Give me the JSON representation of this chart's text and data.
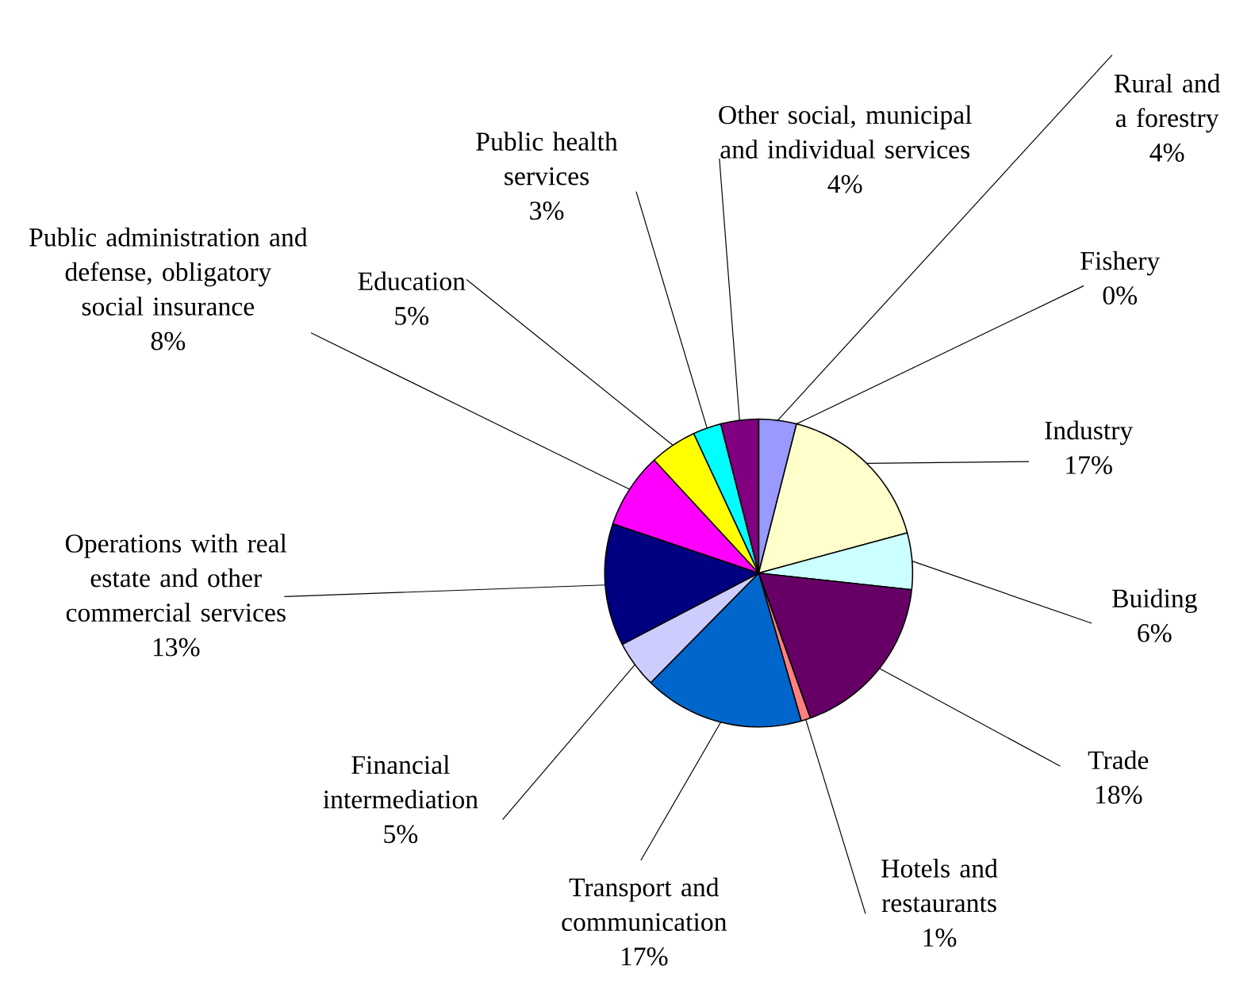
{
  "chart_data": {
    "type": "pie",
    "categories": [
      "Rural and a forestry",
      "Fishery",
      "Industry",
      "Buiding",
      "Trade",
      "Hotels and restaurants",
      "Transport and communication",
      "Financial intermediation",
      "Operations with real estate and other commercial services",
      "Public administration and defense, obligatory social insurance",
      "Education",
      "Public health services",
      "Other social, municipal and individual services"
    ],
    "values": [
      4,
      0,
      17,
      6,
      18,
      1,
      17,
      5,
      13,
      8,
      5,
      3,
      4
    ],
    "value_labels": [
      "4%",
      "0%",
      "17%",
      "6%",
      "18%",
      "1%",
      "17%",
      "5%",
      "13%",
      "8%",
      "5%",
      "3%",
      "4%"
    ],
    "colors": [
      "#9999ff",
      "#993366",
      "#ffffcc",
      "#ccffff",
      "#660066",
      "#ff8080",
      "#0066cc",
      "#ccccff",
      "#000080",
      "#ff00ff",
      "#ffff00",
      "#00ffff",
      "#800080"
    ]
  }
}
